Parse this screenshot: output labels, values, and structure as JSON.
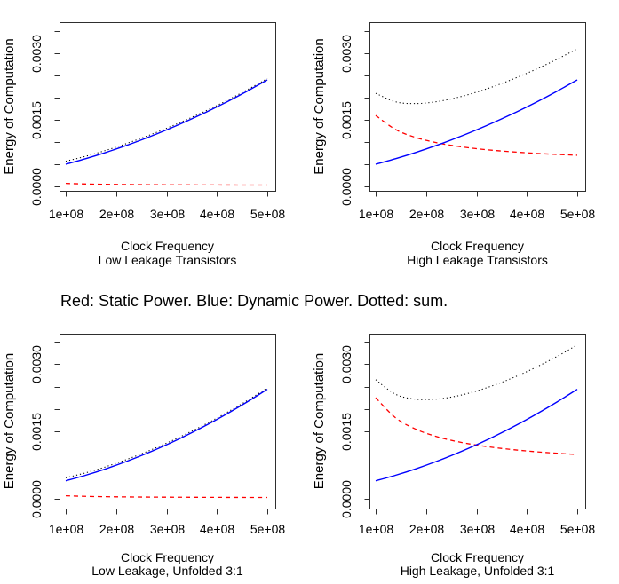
{
  "caption": {
    "text": "Red: Static Power. Blue: Dynamic Power. Dotted: sum."
  },
  "chart_data": [
    {
      "type": "line",
      "position": "top-left",
      "xlabel": "Clock Frequency",
      "sublabel": "Low Leakage Transistors",
      "ylabel": "Energy of Computation",
      "xlim": [
        100000000.0,
        500000000.0
      ],
      "ylim": [
        0,
        0.0035
      ],
      "grid": false,
      "x_tick_values": [
        100000000.0,
        200000000.0,
        300000000.0,
        400000000.0,
        500000000.0
      ],
      "x_tick_labels": [
        "1e+08",
        "2e+08",
        "3e+08",
        "4e+08",
        "5e+08"
      ],
      "y_tick_values": [
        0,
        0.0005,
        0.001,
        0.0015,
        0.002,
        0.0025,
        0.003,
        0.0035
      ],
      "y_tick_labels": [
        "0.0000",
        "",
        "",
        "0.0015",
        "",
        "",
        "0.0030",
        ""
      ],
      "x": [
        100000000.0,
        140000000.0,
        180000000.0,
        220000000.0,
        260000000.0,
        300000000.0,
        340000000.0,
        380000000.0,
        420000000.0,
        460000000.0,
        500000000.0
      ],
      "series": [
        {
          "name": "Static Power",
          "color": "#ff0000",
          "line_style": "dashed",
          "values": [
            6.72e-05,
            5.37e-05,
            4.62e-05,
            4.15e-05,
            3.82e-05,
            3.57e-05,
            3.39e-05,
            3.24e-05,
            3.12e-05,
            3.03e-05,
            2.94e-05
          ]
        },
        {
          "name": "Dynamic Power",
          "color": "#0000ff",
          "line_style": "solid",
          "values": [
            0.0005,
            0.000626,
            0.000767,
            0.000921,
            0.00109,
            0.001273,
            0.00147,
            0.001681,
            0.001906,
            0.002146,
            0.0024
          ]
        },
        {
          "name": "sum",
          "color": "#000000",
          "line_style": "dotted",
          "values": [
            0.000567,
            0.00068,
            0.000813,
            0.000963,
            0.001128,
            0.001309,
            0.001504,
            0.001713,
            0.001937,
            0.002176,
            0.002429
          ]
        }
      ]
    },
    {
      "type": "line",
      "position": "top-right",
      "xlabel": "Clock Frequency",
      "sublabel": "High Leakage Transistors",
      "ylabel": "Energy of Computation",
      "xlim": [
        100000000.0,
        500000000.0
      ],
      "ylim": [
        0,
        0.0035
      ],
      "grid": false,
      "x_tick_values": [
        100000000.0,
        200000000.0,
        300000000.0,
        400000000.0,
        500000000.0
      ],
      "x_tick_labels": [
        "1e+08",
        "2e+08",
        "3e+08",
        "4e+08",
        "5e+08"
      ],
      "y_tick_values": [
        0,
        0.0005,
        0.001,
        0.0015,
        0.002,
        0.0025,
        0.003,
        0.0035
      ],
      "y_tick_labels": [
        "0.0000",
        "",
        "",
        "0.0015",
        "",
        "",
        "0.0030",
        ""
      ],
      "x": [
        100000000.0,
        140000000.0,
        180000000.0,
        220000000.0,
        260000000.0,
        300000000.0,
        340000000.0,
        380000000.0,
        420000000.0,
        460000000.0,
        500000000.0
      ],
      "series": [
        {
          "name": "Static Power",
          "color": "#ff0000",
          "line_style": "dashed",
          "values": [
            0.001599,
            0.001278,
            0.0011,
            0.000987,
            0.000908,
            0.00085,
            0.000806,
            0.000772,
            0.000743,
            0.00072,
            0.000701
          ]
        },
        {
          "name": "Dynamic Power",
          "color": "#0000ff",
          "line_style": "solid",
          "values": [
            0.0005,
            0.000626,
            0.000767,
            0.000921,
            0.00109,
            0.001273,
            0.00147,
            0.001681,
            0.001906,
            0.002146,
            0.0024
          ]
        },
        {
          "name": "sum",
          "color": "#000000",
          "line_style": "dotted",
          "values": [
            0.002099,
            0.001904,
            0.001867,
            0.001908,
            0.001998,
            0.002123,
            0.002276,
            0.002453,
            0.002649,
            0.002866,
            0.003101
          ]
        }
      ]
    },
    {
      "type": "line",
      "position": "bottom-left",
      "xlabel": "Clock Frequency",
      "sublabel": "Low Leakage, Unfolded 3:1",
      "ylabel": "Energy of Computation",
      "xlim": [
        100000000.0,
        500000000.0
      ],
      "ylim": [
        0,
        0.0035
      ],
      "grid": false,
      "x_tick_values": [
        100000000.0,
        200000000.0,
        300000000.0,
        400000000.0,
        500000000.0
      ],
      "x_tick_labels": [
        "1e+08",
        "2e+08",
        "3e+08",
        "4e+08",
        "5e+08"
      ],
      "y_tick_values": [
        0,
        0.0005,
        0.001,
        0.0015,
        0.002,
        0.0025,
        0.003,
        0.0035
      ],
      "y_tick_labels": [
        "0.0000",
        "",
        "",
        "0.0015",
        "",
        "",
        "0.0030",
        ""
      ],
      "x": [
        100000000.0,
        140000000.0,
        180000000.0,
        220000000.0,
        260000000.0,
        300000000.0,
        340000000.0,
        380000000.0,
        420000000.0,
        460000000.0,
        500000000.0
      ],
      "series": [
        {
          "name": "Static Power",
          "color": "#ff0000",
          "line_style": "dashed",
          "values": [
            6.72e-05,
            5.37e-05,
            4.62e-05,
            4.15e-05,
            3.82e-05,
            3.57e-05,
            3.39e-05,
            3.24e-05,
            3.12e-05,
            3.03e-05,
            2.94e-05
          ]
        },
        {
          "name": "Dynamic Power",
          "color": "#0000ff",
          "line_style": "solid",
          "values": [
            0.0004,
            0.000526,
            0.000669,
            0.00083,
            0.001008,
            0.001203,
            0.001416,
            0.001645,
            0.001893,
            0.002157,
            0.002439
          ]
        },
        {
          "name": "sum",
          "color": "#000000",
          "line_style": "dotted",
          "values": [
            0.000467,
            0.00058,
            0.000715,
            0.000872,
            0.001046,
            0.001239,
            0.00145,
            0.001677,
            0.001924,
            0.002187,
            0.002468
          ]
        }
      ]
    },
    {
      "type": "line",
      "position": "bottom-right",
      "xlabel": "Clock Frequency",
      "sublabel": "High Leakage, Unfolded 3:1",
      "ylabel": "Energy of Computation",
      "xlim": [
        100000000.0,
        500000000.0
      ],
      "ylim": [
        0,
        0.0035
      ],
      "grid": false,
      "x_tick_values": [
        100000000.0,
        200000000.0,
        300000000.0,
        400000000.0,
        500000000.0
      ],
      "x_tick_labels": [
        "1e+08",
        "2e+08",
        "3e+08",
        "4e+08",
        "5e+08"
      ],
      "y_tick_values": [
        0,
        0.0005,
        0.001,
        0.0015,
        0.002,
        0.0025,
        0.003,
        0.0035
      ],
      "y_tick_labels": [
        "0.0000",
        "",
        "",
        "0.0015",
        "",
        "",
        "0.0030",
        ""
      ],
      "x": [
        100000000.0,
        140000000.0,
        180000000.0,
        220000000.0,
        260000000.0,
        300000000.0,
        340000000.0,
        380000000.0,
        420000000.0,
        460000000.0,
        500000000.0
      ],
      "series": [
        {
          "name": "Static Power",
          "color": "#ff0000",
          "line_style": "dashed",
          "values": [
            0.002251,
            0.001799,
            0.001548,
            0.001389,
            0.001278,
            0.001197,
            0.001135,
            0.001086,
            0.001046,
            0.001014,
            0.000986
          ]
        },
        {
          "name": "Dynamic Power",
          "color": "#0000ff",
          "line_style": "solid",
          "values": [
            0.0004,
            0.000526,
            0.000669,
            0.00083,
            0.001008,
            0.001203,
            0.001416,
            0.001645,
            0.001893,
            0.002157,
            0.002439
          ]
        },
        {
          "name": "sum",
          "color": "#000000",
          "line_style": "dotted",
          "values": [
            0.002651,
            0.002325,
            0.002217,
            0.002219,
            0.002286,
            0.0024,
            0.002551,
            0.002731,
            0.002939,
            0.003171,
            0.003425
          ]
        }
      ]
    }
  ]
}
